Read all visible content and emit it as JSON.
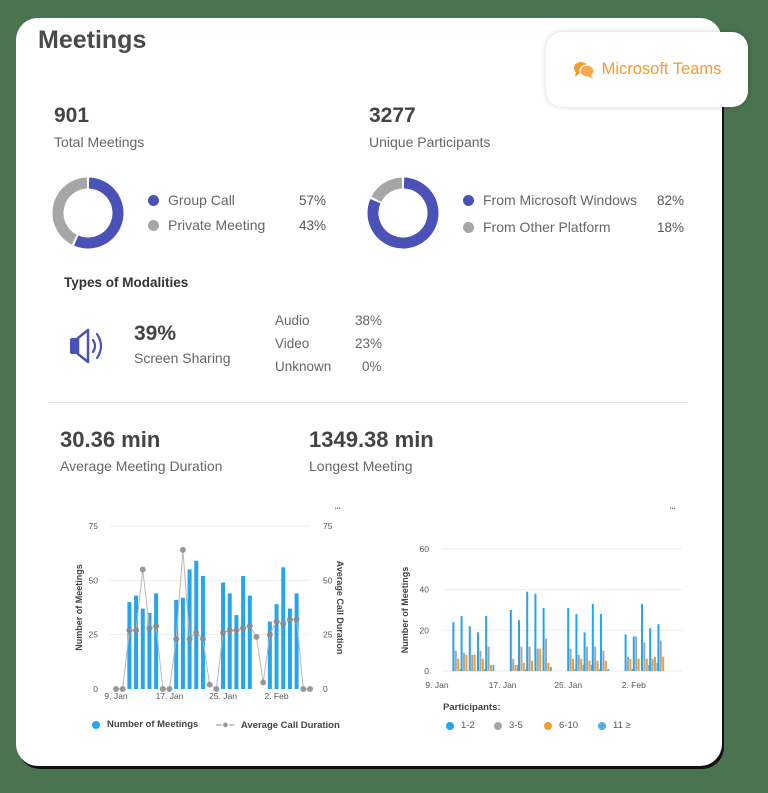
{
  "header": {
    "title": "Meetings",
    "badge_label": "Microsoft Teams",
    "badge_icon": "chat-bubbles-icon"
  },
  "colors": {
    "accent_blue": "#4a52b8",
    "gray": "#a6a6a6",
    "bar_blue": "#25a4ef",
    "orange": "#f59b2f",
    "teams_orange": "#f59b2f",
    "background": "#4a7350"
  },
  "kpis": {
    "total_meetings": {
      "value": "901",
      "label": "Total Meetings"
    },
    "unique_participants": {
      "value": "3277",
      "label": "Unique Participants"
    }
  },
  "meeting_types": [
    {
      "label": "Group Call",
      "pct": "57%",
      "value": 57,
      "color": "#4a52b8"
    },
    {
      "label": "Private Meeting",
      "pct": "43%",
      "value": 43,
      "color": "#a6a6a6"
    }
  ],
  "platforms": [
    {
      "label": "From Microsoft Windows",
      "pct": "82%",
      "value": 82,
      "color": "#4a52b8"
    },
    {
      "label": "From Other Platform",
      "pct": "18%",
      "value": 18,
      "color": "#a6a6a6"
    }
  ],
  "modalities": {
    "title": "Types of Modalities",
    "icon": "speaker-icon",
    "headline_pct": "39%",
    "headline_label": "Screen Sharing",
    "rows": [
      {
        "label": "Audio",
        "pct": "38%"
      },
      {
        "label": "Video",
        "pct": "23%"
      },
      {
        "label": "Unknown",
        "pct": "0%"
      }
    ]
  },
  "durations": {
    "average": {
      "value": "30.36 min",
      "label": "Average Meeting Duration"
    },
    "longest": {
      "value": "1349.38 min",
      "label": "Longest Meeting"
    }
  },
  "more_label": "...",
  "chart_data": [
    {
      "type": "bar",
      "title": "",
      "xlabel": "",
      "ylabel": "Number of Meetings",
      "y2label": "Average Call Duration",
      "ylim": [
        0,
        75
      ],
      "y2lim": [
        0,
        75
      ],
      "yticks": [
        0,
        25,
        50,
        75
      ],
      "xtick_labels": [
        "9. Jan",
        "17. Jan",
        "25. Jan",
        "2. Feb"
      ],
      "grid": true,
      "legend_position": "bottom",
      "categories": [
        "9 Jan",
        "10 Jan",
        "11 Jan",
        "12 Jan",
        "13 Jan",
        "14 Jan",
        "15 Jan",
        "16 Jan",
        "17 Jan",
        "18 Jan",
        "19 Jan",
        "20 Jan",
        "21 Jan",
        "22 Jan",
        "23 Jan",
        "24 Jan",
        "25 Jan",
        "26 Jan",
        "27 Jan",
        "28 Jan",
        "29 Jan",
        "30 Jan",
        "31 Jan",
        "1 Feb",
        "2 Feb",
        "3 Feb",
        "4 Feb",
        "5 Feb",
        "6 Feb",
        "7 Feb"
      ],
      "series": [
        {
          "name": "Number of Meetings",
          "kind": "bar",
          "color": "#25a4ef",
          "values": [
            0,
            0,
            40,
            43,
            37,
            35,
            44,
            0,
            0,
            41,
            42,
            55,
            59,
            52,
            0,
            0,
            49,
            44,
            34,
            52,
            43,
            0,
            0,
            31,
            39,
            56,
            37,
            44,
            0,
            0
          ]
        },
        {
          "name": "Average Call Duration",
          "kind": "line",
          "color": "#8a8a8a",
          "values": [
            0,
            0,
            27,
            27,
            55,
            28,
            29,
            0,
            0,
            23,
            64,
            23,
            26,
            23,
            2,
            0,
            26,
            27,
            27,
            28,
            29,
            24,
            3,
            25,
            31,
            30,
            32,
            32,
            0,
            0
          ]
        }
      ]
    },
    {
      "type": "bar",
      "title": "",
      "xlabel": "",
      "ylabel": "Number of Meetings",
      "ylim": [
        0,
        60
      ],
      "yticks": [
        0,
        20,
        40,
        60
      ],
      "xtick_labels": [
        "9. Jan",
        "17. Jan",
        "25. Jan",
        "2. Feb"
      ],
      "grid": true,
      "legend_title": "Participants:",
      "legend_position": "bottom",
      "categories": [
        "11 Jan",
        "12 Jan",
        "13 Jan",
        "14 Jan",
        "15 Jan",
        "18 Jan",
        "19 Jan",
        "20 Jan",
        "21 Jan",
        "22 Jan",
        "25 Jan",
        "26 Jan",
        "27 Jan",
        "28 Jan",
        "29 Jan",
        "1 Feb",
        "2 Feb",
        "3 Feb",
        "4 Feb",
        "5 Feb"
      ],
      "series": [
        {
          "name": "1-2",
          "color": "#25a4ef",
          "values": [
            24,
            27,
            22,
            19,
            27,
            30,
            25,
            39,
            38,
            31,
            31,
            28,
            19,
            33,
            28,
            18,
            17,
            33,
            21,
            23
          ]
        },
        {
          "name": "3-5",
          "color": "#a6a6a6",
          "values": [
            10,
            9,
            8,
            10,
            12,
            6,
            12,
            12,
            11,
            16,
            11,
            8,
            12,
            12,
            10,
            7,
            17,
            14,
            6,
            15
          ]
        },
        {
          "name": "6-10",
          "color": "#f59b2f",
          "values": [
            6,
            8,
            8,
            6,
            3,
            3,
            4,
            5,
            11,
            4,
            6,
            6,
            5,
            5,
            5,
            6,
            6,
            6,
            7,
            7
          ]
        },
        {
          "name": "11 ≥",
          "color": "#4fb0e6",
          "values": [
            1,
            0,
            0,
            1,
            3,
            3,
            1,
            0,
            0,
            2,
            1,
            3,
            3,
            1,
            1,
            1,
            0,
            3,
            4,
            0
          ]
        }
      ]
    }
  ]
}
